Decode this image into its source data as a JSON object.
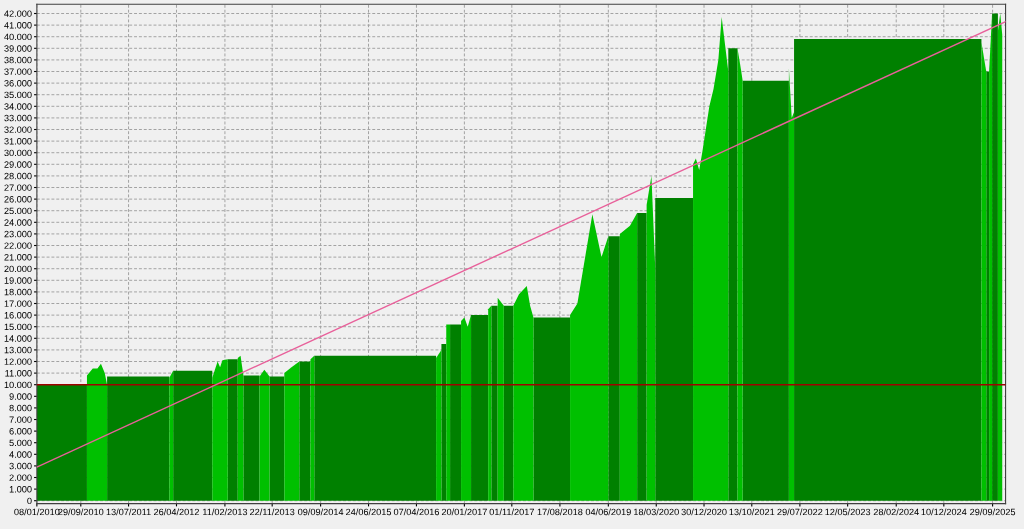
{
  "chart_data": {
    "type": "area",
    "x": [
      "2010-01-08",
      "2010-11-05",
      "2010-11-05",
      "2010-12-10",
      "2011-01-07",
      "2011-01-28",
      "2011-02-20",
      "2011-03-06",
      "2011-03-06",
      "2012-03-14",
      "2012-03-14",
      "2012-04-06",
      "2012-04-06",
      "2012-11-27",
      "2012-11-27",
      "2012-12-29",
      "2013-01-13",
      "2013-01-27",
      "2013-02-28",
      "2013-02-28",
      "2013-04-29",
      "2013-04-29",
      "2013-05-16",
      "2013-06-02",
      "2013-06-02",
      "2013-09-07",
      "2013-09-07",
      "2013-10-06",
      "2013-11-06",
      "2013-11-06",
      "2014-02-03",
      "2014-02-03",
      "2014-03-18",
      "2014-05-04",
      "2014-05-04",
      "2014-07-10",
      "2014-07-10",
      "2014-08-02",
      "2014-08-02",
      "2016-08-03",
      "2016-08-03",
      "2016-09-04",
      "2016-09-04",
      "2016-10-03",
      "2016-10-03",
      "2016-10-26",
      "2016-10-26",
      "2016-12-31",
      "2016-12-31",
      "2017-01-20",
      "2017-02-09",
      "2017-03-01",
      "2017-03-01",
      "2017-06-12",
      "2017-06-12",
      "2017-07-01",
      "2017-07-01",
      "2017-08-08",
      "2017-08-08",
      "2017-09-14",
      "2017-09-14",
      "2017-11-10",
      "2017-11-10",
      "2017-12-14",
      "2018-01-30",
      "2018-02-19",
      "2018-03-11",
      "2018-03-11",
      "2018-10-17",
      "2018-10-17",
      "2018-11-30",
      "2019-01-04",
      "2019-02-28",
      "2019-04-24",
      "2019-06-04",
      "2019-06-04",
      "2019-08-12",
      "2019-08-12",
      "2019-10-12",
      "2019-11-24",
      "2019-11-24",
      "2020-01-20",
      "2020-01-20",
      "2020-02-18",
      "2020-03-12",
      "2020-03-12",
      "2020-10-25",
      "2020-10-25",
      "2020-11-11",
      "2020-12-01",
      "2020-12-19",
      "2021-01-31",
      "2021-02-25",
      "2021-03-26",
      "2021-04-15",
      "2021-05-25",
      "2021-05-25",
      "2021-07-19",
      "2021-07-19",
      "2021-08-11",
      "2021-08-19",
      "2021-08-19",
      "2022-05-24",
      "2022-05-24",
      "2022-06-10",
      "2022-06-24",
      "2022-06-24",
      "2025-07-24",
      "2025-07-24",
      "2025-08-22",
      "2025-08-22",
      "2025-09-08",
      "2025-09-08",
      "2025-09-26",
      "2025-09-26",
      "2025-10-31",
      "2025-10-31",
      "2025-11-14",
      "2025-11-26"
    ],
    "series": [
      {
        "color": "#008000",
        "values": [
          10000,
          10000,
          null,
          null,
          null,
          null,
          null,
          null,
          10700,
          10700,
          null,
          null,
          11200,
          11200,
          null,
          null,
          null,
          null,
          null,
          12200,
          12200,
          null,
          null,
          null,
          10800,
          10800,
          null,
          null,
          null,
          10700,
          10700,
          null,
          null,
          null,
          12000,
          12000,
          null,
          null,
          12500,
          12500,
          null,
          null,
          13500,
          13500,
          null,
          null,
          15200,
          15200,
          null,
          null,
          null,
          null,
          16000,
          16000,
          null,
          null,
          16800,
          16800,
          null,
          null,
          16800,
          16800,
          null,
          null,
          null,
          null,
          null,
          15800,
          15800,
          null,
          null,
          null,
          null,
          null,
          null,
          22800,
          22800,
          null,
          null,
          null,
          24800,
          24800,
          null,
          null,
          null,
          26100,
          26100,
          null,
          null,
          null,
          null,
          null,
          null,
          null,
          null,
          null,
          39000,
          39000,
          null,
          null,
          null,
          36200,
          36200,
          null,
          null,
          null,
          39800,
          39800,
          null,
          null,
          37000,
          37000,
          null,
          null,
          42000,
          42000,
          null,
          null,
          null
        ]
      },
      {
        "color": "#00c000",
        "values": [
          null,
          null,
          10800,
          11400,
          11400,
          11800,
          11000,
          10000,
          null,
          null,
          10600,
          11200,
          null,
          null,
          10600,
          12000,
          11500,
          12100,
          12200,
          null,
          null,
          12300,
          12500,
          10800,
          null,
          null,
          10700,
          11300,
          10700,
          null,
          null,
          11000,
          11500,
          12000,
          null,
          null,
          12200,
          12500,
          null,
          null,
          12300,
          13000,
          null,
          null,
          15200,
          15200,
          null,
          null,
          15500,
          15800,
          15000,
          16000,
          null,
          null,
          16500,
          16800,
          null,
          null,
          17500,
          16800,
          null,
          null,
          16800,
          17800,
          18500,
          16800,
          15800,
          null,
          null,
          16000,
          17000,
          20000,
          24700,
          21000,
          22800,
          null,
          null,
          23000,
          23700,
          24800,
          null,
          null,
          25500,
          28000,
          20000,
          null,
          null,
          29000,
          29500,
          28500,
          30000,
          34000,
          35500,
          38000,
          41700,
          37000,
          null,
          null,
          39000,
          37000,
          36200,
          null,
          null,
          37300,
          33000,
          33500,
          null,
          null,
          39500,
          37000,
          null,
          null,
          37000,
          42000,
          null,
          null,
          40500,
          42000,
          40200
        ]
      },
      {
        "type": "line",
        "color": "#e8609a",
        "x": [
          "2010-01-08",
          "2025-12-16"
        ],
        "values": [
          2900,
          41300
        ]
      }
    ],
    "ref_lines": [
      {
        "axis": "y",
        "value": 10000,
        "color": "#a00000"
      }
    ],
    "xlim": [
      "2010-01-08",
      "2025-12-16"
    ],
    "xticks": [
      {
        "value": "2010-01-08",
        "label": "08/01/2010"
      },
      {
        "value": "2010-09-29",
        "label": "29/09/2010"
      },
      {
        "value": "2011-07-13",
        "label": "13/07/2011"
      },
      {
        "value": "2012-04-26",
        "label": "26/04/2012"
      },
      {
        "value": "2013-02-11",
        "label": "11/02/2013"
      },
      {
        "value": "2013-11-22",
        "label": "22/11/2013"
      },
      {
        "value": "2014-09-09",
        "label": "09/09/2014"
      },
      {
        "value": "2015-06-24",
        "label": "24/06/2015"
      },
      {
        "value": "2016-04-07",
        "label": "07/04/2016"
      },
      {
        "value": "2017-01-20",
        "label": "20/01/2017"
      },
      {
        "value": "2017-11-01",
        "label": "01/11/2017"
      },
      {
        "value": "2018-08-17",
        "label": "17/08/2018"
      },
      {
        "value": "2019-06-04",
        "label": "04/06/2019"
      },
      {
        "value": "2020-03-18",
        "label": "18/03/2020"
      },
      {
        "value": "2020-12-30",
        "label": "30/12/2020"
      },
      {
        "value": "2021-10-13",
        "label": "13/10/2021"
      },
      {
        "value": "2022-07-29",
        "label": "29/07/2022"
      },
      {
        "value": "2023-05-12",
        "label": "12/05/2023"
      },
      {
        "value": "2024-02-28",
        "label": "28/02/2024"
      },
      {
        "value": "2024-12-10",
        "label": "10/12/2024"
      },
      {
        "value": "2025-09-29",
        "label": "29/09/2025"
      }
    ],
    "ylim": [
      -250,
      42800
    ],
    "yticks": [
      0,
      {
        "value": 1000,
        "label": "1.000"
      },
      {
        "value": 2000,
        "label": "2.000"
      },
      {
        "value": 3000,
        "label": "3.000"
      },
      {
        "value": 4000,
        "label": "4.000"
      },
      {
        "value": 5000,
        "label": "5.000"
      },
      {
        "value": 6000,
        "label": "6.000"
      },
      {
        "value": 7000,
        "label": "7.000"
      },
      {
        "value": 8000,
        "label": "8.000"
      },
      {
        "value": 9000,
        "label": "9.000"
      },
      {
        "value": 10000,
        "label": "10.000"
      },
      {
        "value": 11000,
        "label": "11.000"
      },
      {
        "value": 12000,
        "label": "12.000"
      },
      {
        "value": 13000,
        "label": "13.000"
      },
      {
        "value": 14000,
        "label": "14.000"
      },
      {
        "value": 15000,
        "label": "15.000"
      },
      {
        "value": 16000,
        "label": "16.000"
      },
      {
        "value": 17000,
        "label": "17.000"
      },
      {
        "value": 18000,
        "label": "18.000"
      },
      {
        "value": 19000,
        "label": "19.000"
      },
      {
        "value": 20000,
        "label": "20.000"
      },
      {
        "value": 21000,
        "label": "21.000"
      },
      {
        "value": 22000,
        "label": "22.000"
      },
      {
        "value": 23000,
        "label": "23.000"
      },
      {
        "value": 24000,
        "label": "24.000"
      },
      {
        "value": 25000,
        "label": "25.000"
      },
      {
        "value": 26000,
        "label": "26.000"
      },
      {
        "value": 27000,
        "label": "27.000"
      },
      {
        "value": 28000,
        "label": "28.000"
      },
      {
        "value": 29000,
        "label": "29.000"
      },
      {
        "value": 30000,
        "label": "30.000"
      },
      {
        "value": 31000,
        "label": "31.000"
      },
      {
        "value": 32000,
        "label": "32.000"
      },
      {
        "value": 33000,
        "label": "33.000"
      },
      {
        "value": 34000,
        "label": "34.000"
      },
      {
        "value": 35000,
        "label": "35.000"
      },
      {
        "value": 36000,
        "label": "36.000"
      },
      {
        "value": 37000,
        "label": "37.000"
      },
      {
        "value": 38000,
        "label": "38.000"
      },
      {
        "value": 39000,
        "label": "39.000"
      },
      {
        "value": 40000,
        "label": "40.000"
      },
      {
        "value": 41000,
        "label": "41.000"
      },
      {
        "value": 42000,
        "label": "42.000"
      }
    ],
    "grid": true
  }
}
